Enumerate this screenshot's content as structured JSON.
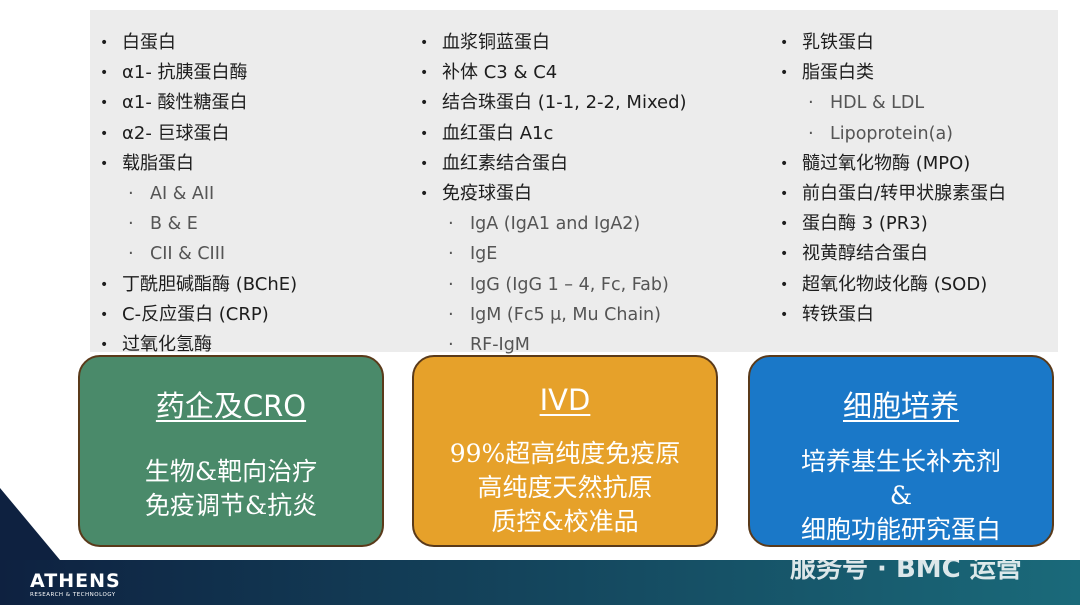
{
  "columns": [
    {
      "items": [
        {
          "text": "白蛋白"
        },
        {
          "text": "α1- 抗胰蛋白酶"
        },
        {
          "text": "α1- 酸性糖蛋白"
        },
        {
          "text": "α2- 巨球蛋白"
        },
        {
          "text": "载脂蛋白",
          "subitems": [
            "AI & AII",
            "B & E",
            "CII & CIII"
          ]
        },
        {
          "text": "丁酰胆碱酯酶 (BChE)"
        },
        {
          "text": "C-反应蛋白 (CRP)"
        },
        {
          "text": "过氧化氢酶"
        }
      ]
    },
    {
      "items": [
        {
          "text": "血浆铜蓝蛋白"
        },
        {
          "text": "补体 C3 & C4"
        },
        {
          "text": "结合珠蛋白 (1-1, 2-2, Mixed)"
        },
        {
          "text": "血红蛋白 A1c"
        },
        {
          "text": "血红素结合蛋白"
        },
        {
          "text": "免疫球蛋白",
          "subitems": [
            "IgA (IgA1 and IgA2)",
            "IgE",
            "IgG (IgG 1 – 4, Fc, Fab)",
            "IgM (Fc5 μ, Mu Chain)",
            "RF-IgM"
          ]
        }
      ]
    },
    {
      "items": [
        {
          "text": "乳铁蛋白"
        },
        {
          "text": "脂蛋白类",
          "subitems": [
            "HDL & LDL",
            "Lipoprotein(a)"
          ]
        },
        {
          "text": "髓过氧化物酶 (MPO)"
        },
        {
          "text": "前白蛋白/转甲状腺素蛋白"
        },
        {
          "text": "蛋白酶 3 (PR3)"
        },
        {
          "text": "视黄醇结合蛋白"
        },
        {
          "text": "超氧化物歧化酶 (SOD)"
        },
        {
          "text": "转铁蛋白"
        }
      ]
    }
  ],
  "boxes": [
    {
      "title": "药企及CRO",
      "lines": [
        "生物&靶向治疗",
        "免疫调节&抗炎"
      ],
      "color": "#4a8a6a"
    },
    {
      "title": "IVD",
      "lines": [
        "99%超高纯度免疫原",
        "高纯度天然抗原",
        "质控&校准品"
      ],
      "color": "#e6a12a"
    },
    {
      "title": "细胞培养",
      "lines": [
        "培养基生长补充剂",
        "&",
        "细胞功能研究蛋白"
      ],
      "color": "#1a78c8"
    }
  ],
  "footer": {
    "logo": "ATHENS",
    "logo_sub": "RESEARCH & TECHNOLOGY",
    "watermark": "服务号 · BMC 运营"
  }
}
